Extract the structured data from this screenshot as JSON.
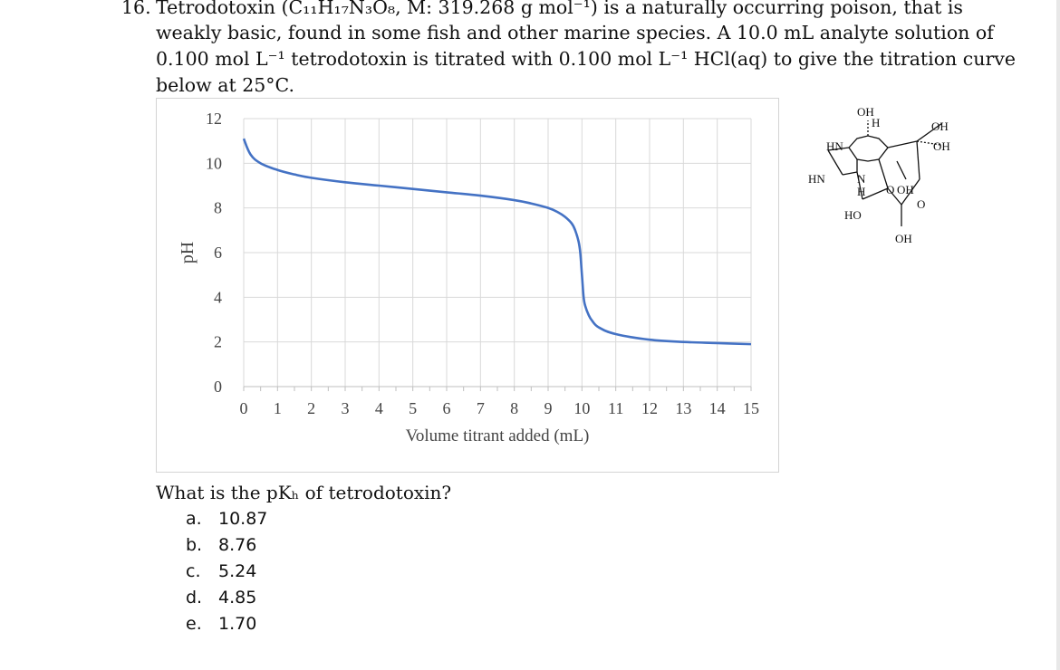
{
  "question": {
    "number": "16.",
    "lines": [
      "Tetrodotoxin (C₁₁H₁₇N₃O₈, M: 319.268 g mol⁻¹) is a naturally occurring poison, that is",
      "weakly basic, found in some fish and other marine species.  A 10.0 mL analyte solution of",
      "0.100 mol L⁻¹ tetrodotoxin is titrated with 0.100 mol L⁻¹ HCl(aq) to give the titration curve",
      "below at 25°C."
    ],
    "ask": "What is the pKₕ of tetrodotoxin?",
    "options": [
      {
        "letter": "a.",
        "value": "10.87"
      },
      {
        "letter": "b.",
        "value": "8.76"
      },
      {
        "letter": "c.",
        "value": "5.24"
      },
      {
        "letter": "d.",
        "value": "4.85"
      },
      {
        "letter": "e.",
        "value": "1.70"
      }
    ]
  },
  "molecule": {
    "labels": [
      "OH",
      "H",
      "OH",
      "HN",
      "OH",
      "HN",
      "N",
      "H",
      "O",
      "OH",
      "HO",
      "O",
      "OH"
    ]
  },
  "chart_data": {
    "type": "line",
    "xlabel": "Volume titrant added (mL)",
    "ylabel": "pH",
    "xlim": [
      0,
      15
    ],
    "ylim": [
      0,
      12
    ],
    "xticks": [
      "0",
      "1",
      "2",
      "3",
      "4",
      "5",
      "6",
      "7",
      "8",
      "9",
      "10",
      "11",
      "12",
      "13",
      "14",
      "15"
    ],
    "yticks": [
      "0",
      "2",
      "4",
      "6",
      "8",
      "10",
      "12"
    ],
    "grid": true,
    "series_color": "#4472c4",
    "series": [
      {
        "x": [
          0,
          0.2,
          0.5,
          1,
          1.5,
          2,
          3,
          4,
          5,
          6,
          7,
          8,
          8.5,
          9,
          9.3,
          9.5,
          9.7,
          9.8,
          9.9,
          9.95,
          10,
          10.05,
          10.1,
          10.2,
          10.3,
          10.5,
          11,
          12,
          13,
          14,
          15
        ],
        "y": [
          11.1,
          10.4,
          10.0,
          9.7,
          9.5,
          9.35,
          9.15,
          9.0,
          8.85,
          8.7,
          8.55,
          8.35,
          8.2,
          8.0,
          7.8,
          7.6,
          7.3,
          7.0,
          6.5,
          6.0,
          5.0,
          4.0,
          3.6,
          3.2,
          2.95,
          2.65,
          2.35,
          2.1,
          2.0,
          1.95,
          1.9
        ]
      }
    ]
  }
}
